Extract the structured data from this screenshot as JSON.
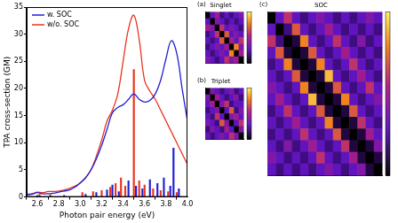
{
  "chart_data": [
    {
      "type": "line",
      "xlabel": "Photon pair energy (eV)",
      "ylabel": "TPA cross-section (GM)",
      "x": [
        2.5,
        2.55,
        2.6,
        2.65,
        2.7,
        2.75,
        2.8,
        2.85,
        2.9,
        2.95,
        3.0,
        3.05,
        3.1,
        3.15,
        3.2,
        3.25,
        3.3,
        3.35,
        3.4,
        3.45,
        3.5,
        3.55,
        3.6,
        3.65,
        3.7,
        3.75,
        3.8,
        3.85,
        3.9,
        3.95,
        4.0
      ],
      "xlim": [
        2.5,
        4.0
      ],
      "xticks": [
        2.6,
        2.8,
        {
          "value": 3,
          "label": "3.0"
        },
        3.2,
        3.4,
        3.6,
        3.8,
        {
          "value": 4,
          "label": "4.0"
        }
      ],
      "ylim": [
        0,
        35
      ],
      "yticks": [
        0,
        5,
        10,
        15,
        20,
        25,
        30,
        35
      ],
      "grid": false,
      "legend": "upper left",
      "series": [
        {
          "name": "w. SOC",
          "color": "#1f1fd6",
          "type": "line",
          "values": [
            0.4,
            0.5,
            0.8,
            0.6,
            0.6,
            0.7,
            0.9,
            1.1,
            1.3,
            1.8,
            2.6,
            3.5,
            5.0,
            7.0,
            9.5,
            12.5,
            15.5,
            16.5,
            17.0,
            18.0,
            19.0,
            18.0,
            17.5,
            17.8,
            19.0,
            21.5,
            25.5,
            28.8,
            26.5,
            20.0,
            14.0
          ]
        },
        {
          "name": "w/o. SOC",
          "color": "#e8331f",
          "type": "line",
          "values": [
            0.5,
            0.6,
            0.9,
            0.8,
            1.0,
            1.0,
            1.1,
            1.3,
            1.6,
            2.0,
            2.6,
            3.6,
            5.0,
            7.5,
            10.5,
            14.0,
            16.0,
            19.0,
            25.0,
            31.0,
            33.5,
            29.0,
            21.5,
            19.5,
            18.0,
            16.0,
            14.0,
            12.0,
            10.0,
            8.0,
            6.0
          ]
        },
        {
          "color": "#e8331f",
          "type": "bar",
          "x": [
            2.62,
            2.72,
            3.02,
            3.12,
            3.2,
            3.28,
            3.33,
            3.38,
            3.42,
            3.5,
            3.55,
            3.6,
            3.68,
            3.75,
            3.82,
            3.9
          ],
          "values": [
            0.5,
            0.4,
            0.8,
            1.0,
            1.2,
            1.8,
            2.5,
            3.5,
            2.0,
            23.5,
            3.0,
            2.2,
            1.5,
            1.2,
            1.0,
            0.8
          ]
        },
        {
          "color": "#1f1fd6",
          "type": "bar",
          "x": [
            2.6,
            2.85,
            3.05,
            3.15,
            3.25,
            3.3,
            3.36,
            3.45,
            3.52,
            3.58,
            3.65,
            3.72,
            3.78,
            3.84,
            3.87,
            3.92
          ],
          "values": [
            0.3,
            0.3,
            0.5,
            0.8,
            1.3,
            2.2,
            1.0,
            3.0,
            2.0,
            1.5,
            3.2,
            2.5,
            3.5,
            2.0,
            9.0,
            1.5
          ]
        }
      ]
    },
    {
      "type": "heatmap",
      "panel": "(a)",
      "title": "Singlet",
      "tick_labels": false,
      "clim": [
        0,
        1
      ],
      "cells": [
        [
          0,
          0.3,
          0.5,
          0.2,
          0.3,
          0.2,
          0.3,
          0.4
        ],
        [
          0.3,
          0,
          0.4,
          0.3,
          0.2,
          0.3,
          0.2,
          0.3
        ],
        [
          0.5,
          0.4,
          0,
          0.6,
          0.3,
          0.4,
          0.3,
          0.2
        ],
        [
          0.2,
          0.3,
          0.6,
          0,
          0.7,
          0.3,
          0.4,
          0.3
        ],
        [
          0.3,
          0.2,
          0.3,
          0.7,
          0,
          0.5,
          0.3,
          0.6
        ],
        [
          0.2,
          0.3,
          0.4,
          0.3,
          0.5,
          0,
          0.8,
          0.4
        ],
        [
          0.3,
          0.2,
          0.3,
          0.4,
          0.3,
          0.8,
          0,
          0.5
        ],
        [
          0.4,
          0.3,
          0.2,
          0.3,
          0.6,
          0.4,
          0.5,
          0
        ]
      ]
    },
    {
      "type": "heatmap",
      "panel": "(b)",
      "title": "Triplet",
      "tick_labels": false,
      "clim": [
        0,
        1
      ],
      "cells": [
        [
          0,
          0.4,
          0.3,
          0.2,
          0.3,
          0.4,
          0.2,
          0.3
        ],
        [
          0.4,
          0,
          0.5,
          0.3,
          0.2,
          0.3,
          0.4,
          0.2
        ],
        [
          0.3,
          0.5,
          0,
          0.4,
          0.6,
          0.2,
          0.3,
          0.3
        ],
        [
          0.2,
          0.3,
          0.4,
          0,
          0.3,
          0.7,
          0.2,
          0.4
        ],
        [
          0.3,
          0.2,
          0.6,
          0.3,
          0,
          0.4,
          0.5,
          0.3
        ],
        [
          0.4,
          0.3,
          0.2,
          0.7,
          0.4,
          0,
          0.3,
          0.6
        ],
        [
          0.2,
          0.4,
          0.3,
          0.2,
          0.5,
          0.3,
          0,
          0.4
        ],
        [
          0.3,
          0.2,
          0.3,
          0.4,
          0.3,
          0.6,
          0.4,
          0
        ]
      ]
    },
    {
      "type": "heatmap",
      "panel": "(c)",
      "title": "SOC",
      "tick_labels": false,
      "clim": [
        0,
        1
      ],
      "cells": [
        [
          0,
          0.3,
          0.6,
          0.3,
          0.2,
          0.3,
          0.4,
          0.3,
          0.2,
          0.3,
          0.2,
          0.3,
          0.4,
          0.3
        ],
        [
          0.3,
          0,
          0.2,
          0.7,
          0.3,
          0.2,
          0.3,
          0.5,
          0.3,
          0.2,
          0.3,
          0.2,
          0.3,
          0.2
        ],
        [
          0.6,
          0.2,
          0,
          0.1,
          0.8,
          0.3,
          0.2,
          0.3,
          0.6,
          0.3,
          0.2,
          0.4,
          0.2,
          0.3
        ],
        [
          0.3,
          0.7,
          0.1,
          0,
          0.1,
          0.7,
          0.3,
          0.2,
          0.3,
          0.5,
          0.3,
          0.2,
          0.3,
          0.2
        ],
        [
          0.2,
          0.3,
          0.8,
          0.1,
          0,
          0.1,
          0.8,
          0.3,
          0.2,
          0.3,
          0.6,
          0.3,
          0.2,
          0.3
        ],
        [
          0.3,
          0.2,
          0.3,
          0.7,
          0.1,
          0,
          0.1,
          0.9,
          0.3,
          0.2,
          0.3,
          0.5,
          0.3,
          0.2
        ],
        [
          0.4,
          0.3,
          0.2,
          0.3,
          0.8,
          0.1,
          0,
          0.1,
          0.7,
          0.3,
          0.2,
          0.3,
          0.6,
          0.3
        ],
        [
          0.3,
          0.5,
          0.3,
          0.2,
          0.3,
          0.9,
          0.1,
          0,
          0.1,
          0.8,
          0.3,
          0.2,
          0.3,
          0.4
        ],
        [
          0.2,
          0.3,
          0.6,
          0.3,
          0.2,
          0.3,
          0.7,
          0.1,
          0,
          0.1,
          0.7,
          0.3,
          0.2,
          0.3
        ],
        [
          0.3,
          0.2,
          0.3,
          0.5,
          0.3,
          0.2,
          0.3,
          0.8,
          0.1,
          0,
          0.1,
          0.6,
          0.3,
          0.2
        ],
        [
          0.2,
          0.3,
          0.2,
          0.3,
          0.6,
          0.3,
          0.2,
          0.3,
          0.7,
          0.1,
          0,
          0.1,
          0.5,
          0.3
        ],
        [
          0.3,
          0.2,
          0.4,
          0.2,
          0.3,
          0.5,
          0.3,
          0.2,
          0.3,
          0.6,
          0.1,
          0,
          0.1,
          0.4
        ],
        [
          0.4,
          0.3,
          0.2,
          0.3,
          0.2,
          0.3,
          0.6,
          0.3,
          0.2,
          0.3,
          0.5,
          0.1,
          0,
          0.1
        ],
        [
          0.3,
          0.2,
          0.3,
          0.2,
          0.3,
          0.2,
          0.3,
          0.4,
          0.3,
          0.2,
          0.3,
          0.4,
          0.1,
          0
        ]
      ]
    }
  ]
}
